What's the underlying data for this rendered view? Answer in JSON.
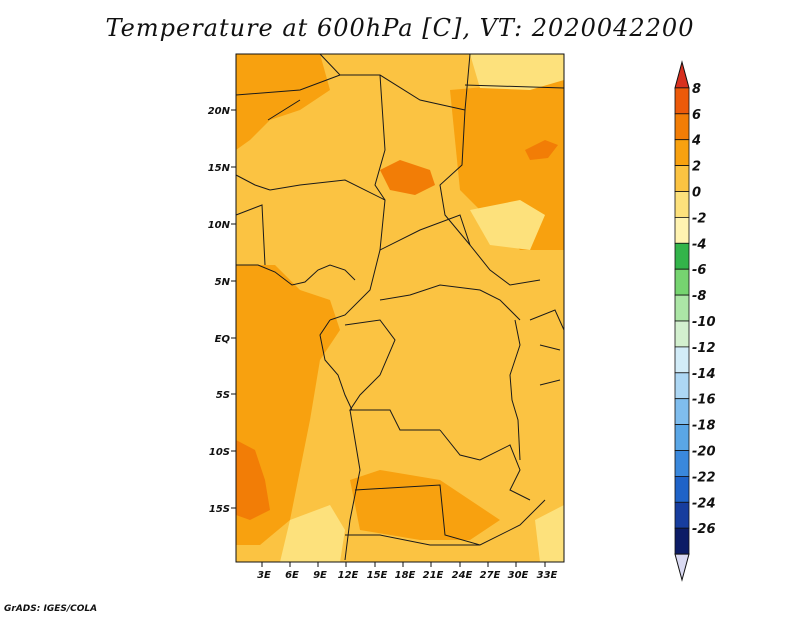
{
  "title": "Temperature at 600hPa [C], VT: 2020042200",
  "credit": "GrADS: IGES/COLA",
  "map": {
    "lat_labels": [
      "20N",
      "15N",
      "10N",
      "5N",
      "EQ",
      "5S",
      "10S",
      "15S"
    ],
    "lon_labels": [
      "3E",
      "6E",
      "9E",
      "12E",
      "15E",
      "18E",
      "21E",
      "24E",
      "27E",
      "30E",
      "33E"
    ]
  },
  "colorbar": {
    "levels": [
      "8",
      "6",
      "4",
      "2",
      "0",
      "-2",
      "-4",
      "-6",
      "-8",
      "-10",
      "-12",
      "-14",
      "-16",
      "-18",
      "-20",
      "-22",
      "-24",
      "-26"
    ],
    "colors": [
      "#d7301f",
      "#ec5a0a",
      "#f27d06",
      "#f8a10f",
      "#fbc342",
      "#fde17c",
      "#fff3b1",
      "#33b44a",
      "#76d470",
      "#ace6a6",
      "#d3f0cf",
      "#d2ecf8",
      "#add7f4",
      "#7fbdee",
      "#5aa6e6",
      "#3a88dc",
      "#1f63c8",
      "#173d9e",
      "#0c1c66",
      "#dadaf2"
    ]
  }
}
